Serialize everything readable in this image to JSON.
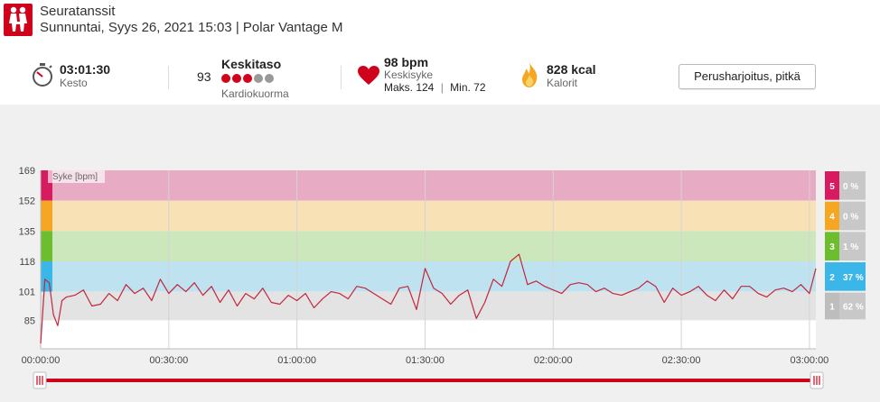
{
  "header": {
    "sport_icon": "dancing-couple-icon",
    "sport": "Seuratanssit",
    "subtitle": "Sunnuntai, Syys 26, 2021 15:03 | Polar Vantage M"
  },
  "stats": {
    "duration": {
      "icon": "stopwatch-icon",
      "value": "03:01:30",
      "label": "Kesto"
    },
    "cardio_load": {
      "value": "93",
      "title": "Keskitaso",
      "label": "Kardiokuorma",
      "level": 3,
      "max_level": 5
    },
    "heart_rate": {
      "icon": "heart-icon",
      "value": "98 bpm",
      "label": "Keskisyke",
      "max": "Maks. 124",
      "separator": "|",
      "min": "Min. 72"
    },
    "calories": {
      "icon": "flame-icon",
      "value": "828 kcal",
      "label": "Kalorit"
    },
    "training_type_button": "Perusharjoitus, pitkä"
  },
  "colors": {
    "accent": "#d0021b",
    "zone5": "#e8abc4",
    "zone4": "#f7e1b5",
    "zone3": "#cce7bc",
    "zone2": "#bee2f0",
    "zone1": "#e3e3e3",
    "zone5_strip": "#d81b60",
    "zone4_strip": "#f5a623",
    "zone3_strip": "#6cbe2e",
    "zone2_strip": "#3ab6e8",
    "hr_line": "#c2263e"
  },
  "chart_data": {
    "type": "line",
    "series_label": "Syke [bpm]",
    "y_ticks": [
      169,
      152,
      135,
      118,
      101,
      85
    ],
    "y_range": [
      69,
      169
    ],
    "x_ticks": [
      "00:00:00",
      "00:30:00",
      "01:00:00",
      "01:30:00",
      "02:00:00",
      "02:30:00",
      "03:00:00"
    ],
    "x_range_minutes": [
      0,
      181.5
    ],
    "zones": [
      {
        "zone": "5",
        "from": 152,
        "to": 169,
        "percent": "0 %"
      },
      {
        "zone": "4",
        "from": 135,
        "to": 152,
        "percent": "0 %"
      },
      {
        "zone": "3",
        "from": 118,
        "to": 135,
        "percent": "1 %"
      },
      {
        "zone": "2",
        "from": 101,
        "to": 118,
        "percent": "37 %"
      },
      {
        "zone": "1",
        "from": 85,
        "to": 101,
        "percent": "62 %"
      }
    ],
    "hr_minutes": [
      0,
      1,
      2,
      3,
      4,
      5,
      6,
      8,
      10,
      12,
      14,
      16,
      18,
      20,
      22,
      24,
      26,
      28,
      30,
      32,
      34,
      36,
      38,
      40,
      42,
      44,
      46,
      48,
      50,
      52,
      54,
      56,
      58,
      60,
      62,
      64,
      66,
      68,
      70,
      72,
      74,
      76,
      78,
      80,
      82,
      84,
      86,
      88,
      90,
      92,
      94,
      96,
      98,
      100,
      102,
      104,
      106,
      108,
      110,
      112,
      114,
      116,
      118,
      120,
      122,
      124,
      126,
      128,
      130,
      132,
      134,
      136,
      138,
      140,
      142,
      144,
      146,
      148,
      150,
      152,
      154,
      156,
      158,
      160,
      162,
      164,
      166,
      168,
      170,
      172,
      174,
      176,
      178,
      180,
      181.5
    ],
    "hr_values": [
      72,
      108,
      106,
      88,
      82,
      96,
      98,
      99,
      102,
      93,
      94,
      100,
      96,
      105,
      100,
      103,
      96,
      108,
      100,
      105,
      101,
      106,
      99,
      104,
      95,
      102,
      93,
      100,
      97,
      103,
      95,
      94,
      99,
      96,
      100,
      92,
      97,
      101,
      100,
      97,
      104,
      103,
      100,
      97,
      94,
      103,
      104,
      91,
      114,
      103,
      100,
      94,
      99,
      102,
      86,
      95,
      108,
      104,
      118,
      122,
      105,
      107,
      104,
      102,
      100,
      105,
      106,
      105,
      101,
      103,
      100,
      99,
      101,
      103,
      107,
      104,
      95,
      103,
      99,
      101,
      104,
      99,
      96,
      102,
      97,
      104,
      104,
      100,
      98,
      102,
      103,
      101,
      105,
      100,
      114
    ]
  },
  "range_slider": {
    "left_handle": "handle-left-icon",
    "right_handle": "handle-right-icon"
  }
}
